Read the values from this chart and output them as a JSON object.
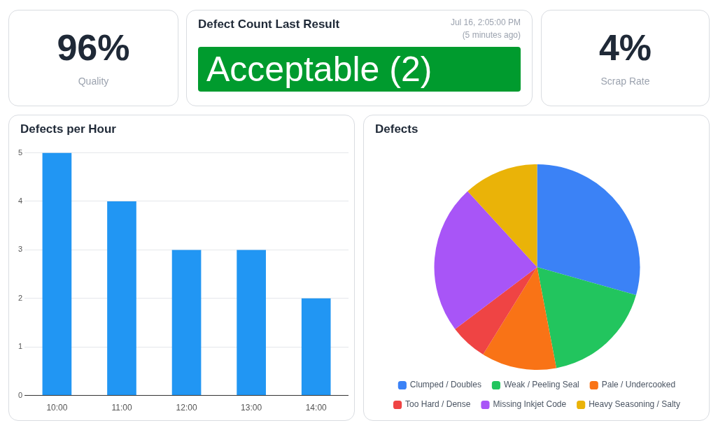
{
  "chart_data": [
    {
      "type": "other",
      "title": "Quality",
      "annotations": [
        "96%"
      ]
    },
    {
      "type": "other",
      "title": "Defect Count Last Result",
      "annotations": [
        "Jul 16, 2:05:00 PM",
        "(5 minutes ago)",
        "Acceptable (2)"
      ]
    },
    {
      "type": "other",
      "title": "Scrap Rate",
      "annotations": [
        "4%"
      ]
    },
    {
      "type": "bar",
      "title": "Defects per Hour",
      "categories": [
        "10:00",
        "11:00",
        "12:00",
        "13:00",
        "14:00"
      ],
      "values": [
        5,
        4,
        3,
        3,
        2
      ],
      "color": "#2196f3",
      "ylim": [
        0,
        5
      ],
      "yticks": [
        0,
        1,
        2,
        3,
        4,
        5
      ],
      "grid": "y",
      "legend": false
    },
    {
      "type": "pie",
      "title": "Defects",
      "categories": [
        "Clumped / Doubles",
        "Weak / Peeling Seal",
        "Pale / Undercooked",
        "Too Hard / Dense",
        "Missing Inkjet Code",
        "Heavy Seasoning / Salty"
      ],
      "values": [
        29.4,
        17.6,
        11.8,
        5.9,
        23.5,
        11.8
      ],
      "colors": [
        "#3b82f6",
        "#22c55e",
        "#f97316",
        "#ef4444",
        "#a855f7",
        "#eab308"
      ],
      "legend": "bottom"
    }
  ]
}
